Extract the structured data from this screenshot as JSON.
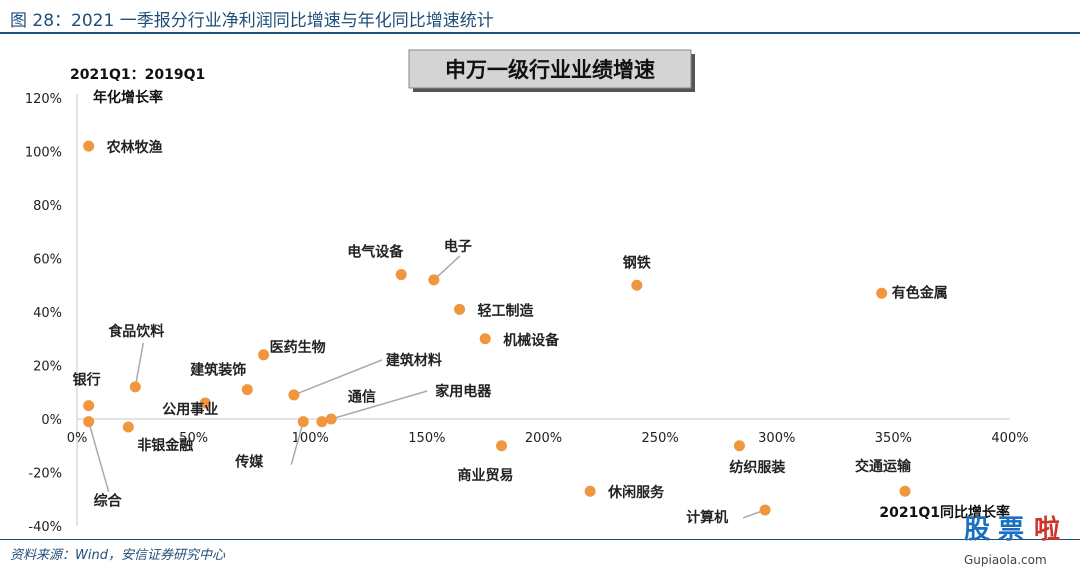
{
  "figure": {
    "title": "图 28：2021 一季报分行业净利润同比增速与年化同比增速统计",
    "source": "资料来源：Wind，安信证券研究中心",
    "watermark": {
      "chars": [
        "股",
        "票",
        "啦"
      ],
      "url": "Gupiaola.com",
      "colors": [
        "#1a6fc0",
        "#1a6fc0",
        "#d0352b"
      ]
    }
  },
  "colors": {
    "marker": "#f0963f",
    "leader": "#a9a9a9",
    "rule": "#1f4e79"
  },
  "chart_data": {
    "type": "scatter",
    "title": "申万一级行业业绩增速",
    "ylabel_line1": "2021Q1：2019Q1",
    "ylabel_line2": "年化增长率",
    "xlabel": "2021Q1同比增长率",
    "xlim": [
      0,
      4.0
    ],
    "ylim": [
      -0.4,
      1.2
    ],
    "xticks": [
      0,
      0.5,
      1.0,
      1.5,
      2.0,
      2.5,
      3.0,
      3.5,
      4.0
    ],
    "xtick_labels": [
      "0%",
      "50%",
      "100%",
      "150%",
      "200%",
      "250%",
      "300%",
      "350%",
      "400%"
    ],
    "yticks": [
      -0.4,
      -0.2,
      0,
      0.2,
      0.4,
      0.6,
      0.8,
      1.0,
      1.2
    ],
    "ytick_labels": [
      "-40%",
      "-20%",
      "0%",
      "20%",
      "40%",
      "60%",
      "80%",
      "100%",
      "120%"
    ],
    "grid": false,
    "points": [
      {
        "name": "农林牧渔",
        "x": 0.05,
        "y": 1.02
      },
      {
        "name": "银行",
        "x": 0.05,
        "y": 0.05
      },
      {
        "name": "综合",
        "x": 0.05,
        "y": -0.01
      },
      {
        "name": "非银金融",
        "x": 0.22,
        "y": -0.03
      },
      {
        "name": "食品饮料",
        "x": 0.25,
        "y": 0.12
      },
      {
        "name": "公用事业",
        "x": 0.55,
        "y": 0.06
      },
      {
        "name": "建筑装饰",
        "x": 0.73,
        "y": 0.11
      },
      {
        "name": "医药生物",
        "x": 0.8,
        "y": 0.24
      },
      {
        "name": "建筑材料",
        "x": 0.93,
        "y": 0.09
      },
      {
        "name": "传媒",
        "x": 0.97,
        "y": -0.01
      },
      {
        "name": "通信",
        "x": 1.05,
        "y": -0.01
      },
      {
        "name": "家用电器",
        "x": 1.09,
        "y": 0.0
      },
      {
        "name": "电气设备",
        "x": 1.39,
        "y": 0.54
      },
      {
        "name": "电子",
        "x": 1.53,
        "y": 0.52
      },
      {
        "name": "轻工制造",
        "x": 1.64,
        "y": 0.41
      },
      {
        "name": "机械设备",
        "x": 1.75,
        "y": 0.3
      },
      {
        "name": "商业贸易",
        "x": 1.82,
        "y": -0.1
      },
      {
        "name": "休闲服务",
        "x": 2.2,
        "y": -0.27
      },
      {
        "name": "钢铁",
        "x": 2.4,
        "y": 0.5
      },
      {
        "name": "纺织服装",
        "x": 2.84,
        "y": -0.1
      },
      {
        "name": "计算机",
        "x": 2.95,
        "y": -0.34
      },
      {
        "name": "有色金属",
        "x": 3.45,
        "y": 0.47
      },
      {
        "name": "交通运输",
        "x": 3.55,
        "y": -0.27
      }
    ]
  }
}
